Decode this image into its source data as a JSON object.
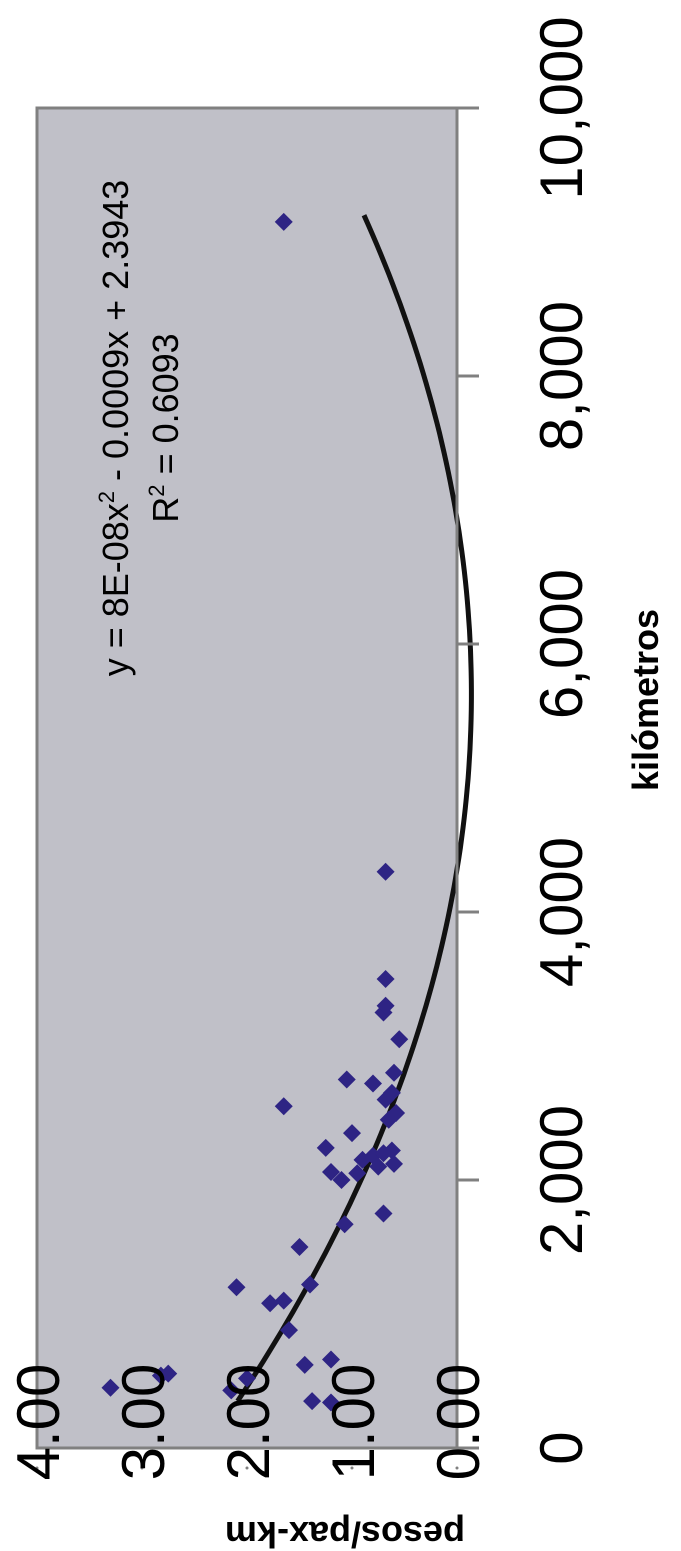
{
  "chart_data": {
    "type": "scatter",
    "orientation": "rotated-90-clockwise",
    "xlabel": "kilómetros",
    "ylabel": "pesos/pax-km",
    "xlim": [
      0,
      10000
    ],
    "ylim": [
      0,
      4
    ],
    "x_ticks": [
      "0",
      "2,000",
      "4,000",
      "6,000",
      "8,000",
      "10,000"
    ],
    "y_ticks": [
      "0.00",
      "1.00",
      "2.00",
      "3.00",
      "4.00"
    ],
    "plot_background": "#c0c0c8",
    "marker_color": "#2e2484",
    "trendline_color": "#111111",
    "trendline": {
      "type": "polynomial",
      "coefficients": [
        8e-08,
        -0.0009,
        2.3943
      ],
      "x_range": [
        350,
        9200
      ],
      "equation_prefix": "y = 8E-08x",
      "equation_sup": "2",
      "equation_suffix": " - 0.0009x + 2.3943",
      "r2_prefix": "R",
      "r2_sup": "2",
      "r2_suffix": " = 0.6093"
    },
    "points": [
      {
        "x": 450,
        "y": 3.3
      },
      {
        "x": 540,
        "y": 2.82
      },
      {
        "x": 555,
        "y": 2.75
      },
      {
        "x": 430,
        "y": 2.15
      },
      {
        "x": 520,
        "y": 2.0
      },
      {
        "x": 350,
        "y": 1.38
      },
      {
        "x": 340,
        "y": 1.2
      },
      {
        "x": 620,
        "y": 1.45
      },
      {
        "x": 660,
        "y": 1.2
      },
      {
        "x": 880,
        "y": 1.6
      },
      {
        "x": 1080,
        "y": 1.78
      },
      {
        "x": 1100,
        "y": 1.65
      },
      {
        "x": 1200,
        "y": 2.1
      },
      {
        "x": 1220,
        "y": 1.4
      },
      {
        "x": 1500,
        "y": 1.5
      },
      {
        "x": 1670,
        "y": 1.07
      },
      {
        "x": 1750,
        "y": 0.7
      },
      {
        "x": 2000,
        "y": 1.1
      },
      {
        "x": 2050,
        "y": 0.95
      },
      {
        "x": 2060,
        "y": 1.2
      },
      {
        "x": 2100,
        "y": 0.75
      },
      {
        "x": 2120,
        "y": 0.6
      },
      {
        "x": 2150,
        "y": 0.9
      },
      {
        "x": 2180,
        "y": 0.8
      },
      {
        "x": 2200,
        "y": 0.7
      },
      {
        "x": 2220,
        "y": 0.62
      },
      {
        "x": 2240,
        "y": 1.25
      },
      {
        "x": 2350,
        "y": 1.0
      },
      {
        "x": 2450,
        "y": 0.65
      },
      {
        "x": 2500,
        "y": 0.58
      },
      {
        "x": 2550,
        "y": 1.65
      },
      {
        "x": 2600,
        "y": 0.68
      },
      {
        "x": 2650,
        "y": 0.62
      },
      {
        "x": 2720,
        "y": 0.8
      },
      {
        "x": 2750,
        "y": 1.05
      },
      {
        "x": 2800,
        "y": 0.6
      },
      {
        "x": 3050,
        "y": 0.55
      },
      {
        "x": 3250,
        "y": 0.7
      },
      {
        "x": 3300,
        "y": 0.68
      },
      {
        "x": 3500,
        "y": 0.68
      },
      {
        "x": 4300,
        "y": 0.68
      },
      {
        "x": 9150,
        "y": 1.65
      }
    ]
  }
}
